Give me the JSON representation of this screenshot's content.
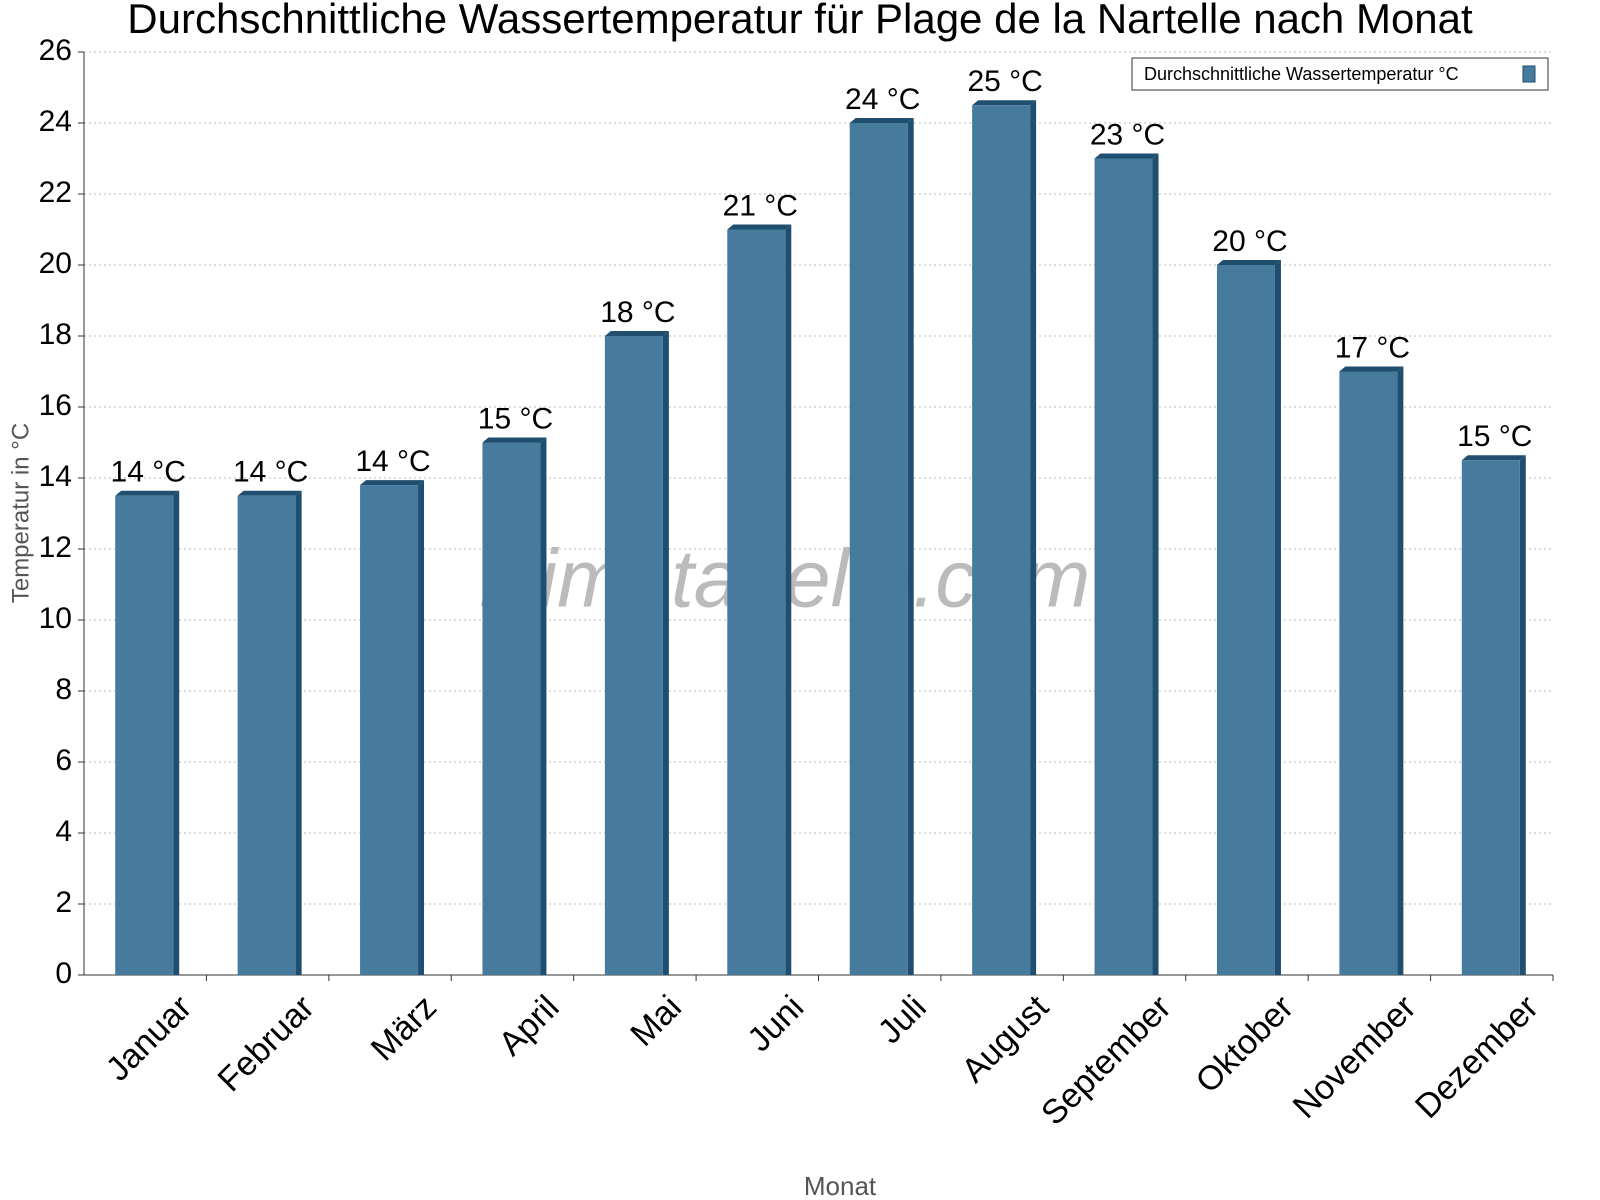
{
  "chart_data": {
    "type": "bar",
    "title": "Durchschnittliche Wassertemperatur für Plage de la Nartelle nach Monat",
    "x_label": "Monat",
    "y_label": "Temperatur in °C",
    "watermark": "klimatabelle.com",
    "categories": [
      "Januar",
      "Februar",
      "März",
      "April",
      "Mai",
      "Juni",
      "Juli",
      "August",
      "September",
      "Oktober",
      "November",
      "Dezember"
    ],
    "series": [
      {
        "name": "Durchschnittliche Wassertemperatur °C",
        "color": "#467b9e",
        "values": [
          13.5,
          13.5,
          13.8,
          15,
          18,
          21,
          24,
          24.5,
          23,
          20,
          17,
          14.5
        ],
        "value_labels": [
          "14 °C",
          "14 °C",
          "14 °C",
          "15 °C",
          "18 °C",
          "21 °C",
          "24 °C",
          "25 °C",
          "23 °C",
          "20 °C",
          "17 °C",
          "15 °C"
        ]
      }
    ],
    "ylim": [
      0,
      26
    ],
    "yticks": [
      0,
      2,
      4,
      6,
      8,
      10,
      12,
      14,
      16,
      18,
      20,
      22,
      24,
      26
    ],
    "grid": true,
    "legend": "top-right"
  }
}
